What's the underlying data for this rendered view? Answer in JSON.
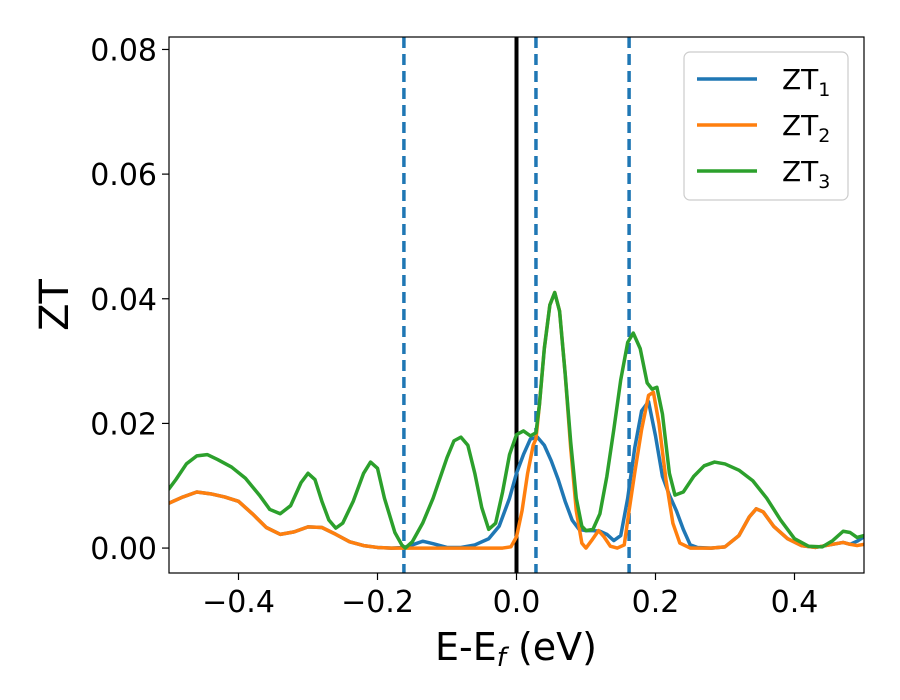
{
  "chart_data": {
    "type": "line",
    "xlabel": {
      "main": "E-E",
      "sub": "f",
      "tail": " (eV)"
    },
    "ylabel": "ZT",
    "xlim": [
      -0.5,
      0.5
    ],
    "ylim": [
      -0.004,
      0.082
    ],
    "xticks": [
      -0.4,
      -0.2,
      0.0,
      0.2,
      0.4
    ],
    "xtick_labels": [
      "−0.4",
      "−0.2",
      "0.0",
      "0.2",
      "0.4"
    ],
    "yticks": [
      0.0,
      0.02,
      0.04,
      0.06,
      0.08
    ],
    "ytick_labels": [
      "0.00",
      "0.02",
      "0.04",
      "0.06",
      "0.08"
    ],
    "grid": false,
    "legend_position": "top-right",
    "vlines": [
      {
        "x": 0.0,
        "style": "solid",
        "color": "#000000"
      },
      {
        "x": -0.162,
        "style": "dashed",
        "color": "#1f77b4"
      },
      {
        "x": 0.028,
        "style": "dashed",
        "color": "#1f77b4"
      },
      {
        "x": 0.162,
        "style": "dashed",
        "color": "#1f77b4"
      }
    ],
    "series": [
      {
        "name": "ZT",
        "sub": "1",
        "color": "#1f77b4",
        "points": [
          [
            -0.5,
            0.0072
          ],
          [
            -0.48,
            0.0082
          ],
          [
            -0.46,
            0.009
          ],
          [
            -0.44,
            0.0087
          ],
          [
            -0.42,
            0.0082
          ],
          [
            -0.4,
            0.0075
          ],
          [
            -0.38,
            0.0055
          ],
          [
            -0.36,
            0.0033
          ],
          [
            -0.34,
            0.0022
          ],
          [
            -0.32,
            0.0026
          ],
          [
            -0.3,
            0.0034
          ],
          [
            -0.28,
            0.0033
          ],
          [
            -0.26,
            0.0022
          ],
          [
            -0.24,
            0.001
          ],
          [
            -0.22,
            0.0004
          ],
          [
            -0.2,
            0.0001
          ],
          [
            -0.18,
            0.0
          ],
          [
            -0.162,
            0.0001
          ],
          [
            -0.15,
            0.0005
          ],
          [
            -0.135,
            0.0011
          ],
          [
            -0.12,
            0.0007
          ],
          [
            -0.1,
            0.0001
          ],
          [
            -0.08,
            0.0001
          ],
          [
            -0.06,
            0.0005
          ],
          [
            -0.04,
            0.0015
          ],
          [
            -0.025,
            0.0035
          ],
          [
            -0.01,
            0.008
          ],
          [
            0.0,
            0.012
          ],
          [
            0.01,
            0.015
          ],
          [
            0.02,
            0.0175
          ],
          [
            0.03,
            0.0178
          ],
          [
            0.04,
            0.0165
          ],
          [
            0.05,
            0.014
          ],
          [
            0.06,
            0.011
          ],
          [
            0.07,
            0.0075
          ],
          [
            0.08,
            0.0045
          ],
          [
            0.09,
            0.003
          ],
          [
            0.1,
            0.0028
          ],
          [
            0.11,
            0.0028
          ],
          [
            0.12,
            0.0027
          ],
          [
            0.13,
            0.0022
          ],
          [
            0.14,
            0.0012
          ],
          [
            0.15,
            0.002
          ],
          [
            0.16,
            0.008
          ],
          [
            0.17,
            0.016
          ],
          [
            0.18,
            0.022
          ],
          [
            0.19,
            0.0235
          ],
          [
            0.2,
            0.018
          ],
          [
            0.21,
            0.0115
          ],
          [
            0.22,
            0.0085
          ],
          [
            0.23,
            0.006
          ],
          [
            0.24,
            0.003
          ],
          [
            0.25,
            0.0005
          ],
          [
            0.26,
            0.0001
          ],
          [
            0.28,
            0.0
          ],
          [
            0.3,
            0.0002
          ],
          [
            0.32,
            0.002
          ],
          [
            0.335,
            0.005
          ],
          [
            0.345,
            0.0063
          ],
          [
            0.355,
            0.0058
          ],
          [
            0.37,
            0.0035
          ],
          [
            0.39,
            0.0015
          ],
          [
            0.41,
            0.0004
          ],
          [
            0.43,
            0.0001
          ],
          [
            0.45,
            0.0005
          ],
          [
            0.47,
            0.0009
          ],
          [
            0.48,
            0.0006
          ],
          [
            0.49,
            0.0011
          ],
          [
            0.5,
            0.0018
          ]
        ]
      },
      {
        "name": "ZT",
        "sub": "2",
        "color": "#ff7f0e",
        "points": [
          [
            -0.5,
            0.0072
          ],
          [
            -0.48,
            0.0082
          ],
          [
            -0.46,
            0.009
          ],
          [
            -0.44,
            0.0087
          ],
          [
            -0.42,
            0.0082
          ],
          [
            -0.4,
            0.0075
          ],
          [
            -0.38,
            0.0055
          ],
          [
            -0.36,
            0.0033
          ],
          [
            -0.34,
            0.0022
          ],
          [
            -0.32,
            0.0026
          ],
          [
            -0.3,
            0.0034
          ],
          [
            -0.28,
            0.0033
          ],
          [
            -0.26,
            0.0022
          ],
          [
            -0.24,
            0.001
          ],
          [
            -0.22,
            0.0004
          ],
          [
            -0.2,
            0.0001
          ],
          [
            -0.18,
            0.0
          ],
          [
            -0.162,
            0.0
          ],
          [
            -0.15,
            0.0
          ],
          [
            -0.1,
            0.0
          ],
          [
            -0.05,
            0.0
          ],
          [
            -0.02,
            0.0
          ],
          [
            -0.008,
            0.0002
          ],
          [
            0.0,
            0.0018
          ],
          [
            0.008,
            0.006
          ],
          [
            0.016,
            0.012
          ],
          [
            0.024,
            0.0165
          ],
          [
            0.028,
            0.0175
          ],
          [
            0.033,
            0.023
          ],
          [
            0.04,
            0.032
          ],
          [
            0.048,
            0.039
          ],
          [
            0.055,
            0.041
          ],
          [
            0.062,
            0.038
          ],
          [
            0.07,
            0.028
          ],
          [
            0.078,
            0.016
          ],
          [
            0.086,
            0.006
          ],
          [
            0.094,
            0.0008
          ],
          [
            0.1,
            0.0
          ],
          [
            0.108,
            0.0012
          ],
          [
            0.118,
            0.0028
          ],
          [
            0.126,
            0.0018
          ],
          [
            0.135,
            0.0003
          ],
          [
            0.145,
            0.0
          ],
          [
            0.155,
            0.0005
          ],
          [
            0.162,
            0.006
          ],
          [
            0.17,
            0.012
          ],
          [
            0.18,
            0.019
          ],
          [
            0.19,
            0.0245
          ],
          [
            0.197,
            0.025
          ],
          [
            0.205,
            0.02
          ],
          [
            0.215,
            0.011
          ],
          [
            0.225,
            0.004
          ],
          [
            0.235,
            0.0008
          ],
          [
            0.25,
            0.0
          ],
          [
            0.28,
            0.0
          ],
          [
            0.3,
            0.0002
          ],
          [
            0.32,
            0.002
          ],
          [
            0.335,
            0.005
          ],
          [
            0.345,
            0.0063
          ],
          [
            0.355,
            0.0058
          ],
          [
            0.37,
            0.0035
          ],
          [
            0.39,
            0.0015
          ],
          [
            0.41,
            0.0004
          ],
          [
            0.43,
            0.0001
          ],
          [
            0.45,
            0.0005
          ],
          [
            0.47,
            0.0009
          ],
          [
            0.48,
            0.0006
          ],
          [
            0.49,
            0.0004
          ],
          [
            0.5,
            0.0006
          ]
        ]
      },
      {
        "name": "ZT",
        "sub": "3",
        "color": "#2ca02c",
        "points": [
          [
            -0.5,
            0.0095
          ],
          [
            -0.49,
            0.011
          ],
          [
            -0.475,
            0.0135
          ],
          [
            -0.46,
            0.0148
          ],
          [
            -0.445,
            0.015
          ],
          [
            -0.43,
            0.0142
          ],
          [
            -0.41,
            0.013
          ],
          [
            -0.39,
            0.0112
          ],
          [
            -0.37,
            0.0085
          ],
          [
            -0.355,
            0.0062
          ],
          [
            -0.34,
            0.0055
          ],
          [
            -0.325,
            0.0068
          ],
          [
            -0.31,
            0.0105
          ],
          [
            -0.3,
            0.012
          ],
          [
            -0.29,
            0.011
          ],
          [
            -0.28,
            0.0075
          ],
          [
            -0.27,
            0.0045
          ],
          [
            -0.26,
            0.0032
          ],
          [
            -0.25,
            0.004
          ],
          [
            -0.235,
            0.0075
          ],
          [
            -0.22,
            0.012
          ],
          [
            -0.21,
            0.0138
          ],
          [
            -0.2,
            0.0128
          ],
          [
            -0.19,
            0.008
          ],
          [
            -0.175,
            0.0025
          ],
          [
            -0.165,
            0.0005
          ],
          [
            -0.16,
            0.0
          ],
          [
            -0.15,
            0.001
          ],
          [
            -0.135,
            0.004
          ],
          [
            -0.12,
            0.008
          ],
          [
            -0.1,
            0.0145
          ],
          [
            -0.09,
            0.0172
          ],
          [
            -0.08,
            0.0178
          ],
          [
            -0.07,
            0.0165
          ],
          [
            -0.06,
            0.012
          ],
          [
            -0.05,
            0.0065
          ],
          [
            -0.04,
            0.003
          ],
          [
            -0.03,
            0.004
          ],
          [
            -0.02,
            0.009
          ],
          [
            -0.01,
            0.015
          ],
          [
            0.0,
            0.0182
          ],
          [
            0.01,
            0.0188
          ],
          [
            0.02,
            0.018
          ],
          [
            0.028,
            0.0185
          ],
          [
            0.033,
            0.023
          ],
          [
            0.04,
            0.032
          ],
          [
            0.048,
            0.039
          ],
          [
            0.055,
            0.041
          ],
          [
            0.062,
            0.038
          ],
          [
            0.07,
            0.028
          ],
          [
            0.078,
            0.017
          ],
          [
            0.086,
            0.008
          ],
          [
            0.094,
            0.0035
          ],
          [
            0.1,
            0.0028
          ],
          [
            0.11,
            0.003
          ],
          [
            0.12,
            0.0055
          ],
          [
            0.13,
            0.0115
          ],
          [
            0.14,
            0.019
          ],
          [
            0.15,
            0.027
          ],
          [
            0.16,
            0.033
          ],
          [
            0.168,
            0.0345
          ],
          [
            0.178,
            0.032
          ],
          [
            0.188,
            0.0265
          ],
          [
            0.195,
            0.0255
          ],
          [
            0.202,
            0.0258
          ],
          [
            0.21,
            0.0215
          ],
          [
            0.22,
            0.012
          ],
          [
            0.228,
            0.0085
          ],
          [
            0.24,
            0.009
          ],
          [
            0.255,
            0.0115
          ],
          [
            0.27,
            0.0132
          ],
          [
            0.285,
            0.0138
          ],
          [
            0.3,
            0.0135
          ],
          [
            0.32,
            0.0125
          ],
          [
            0.34,
            0.0108
          ],
          [
            0.36,
            0.008
          ],
          [
            0.38,
            0.0045
          ],
          [
            0.4,
            0.0015
          ],
          [
            0.42,
            0.0003
          ],
          [
            0.44,
            0.0002
          ],
          [
            0.455,
            0.0012
          ],
          [
            0.47,
            0.0027
          ],
          [
            0.48,
            0.0025
          ],
          [
            0.49,
            0.0017
          ],
          [
            0.5,
            0.002
          ]
        ]
      }
    ]
  }
}
